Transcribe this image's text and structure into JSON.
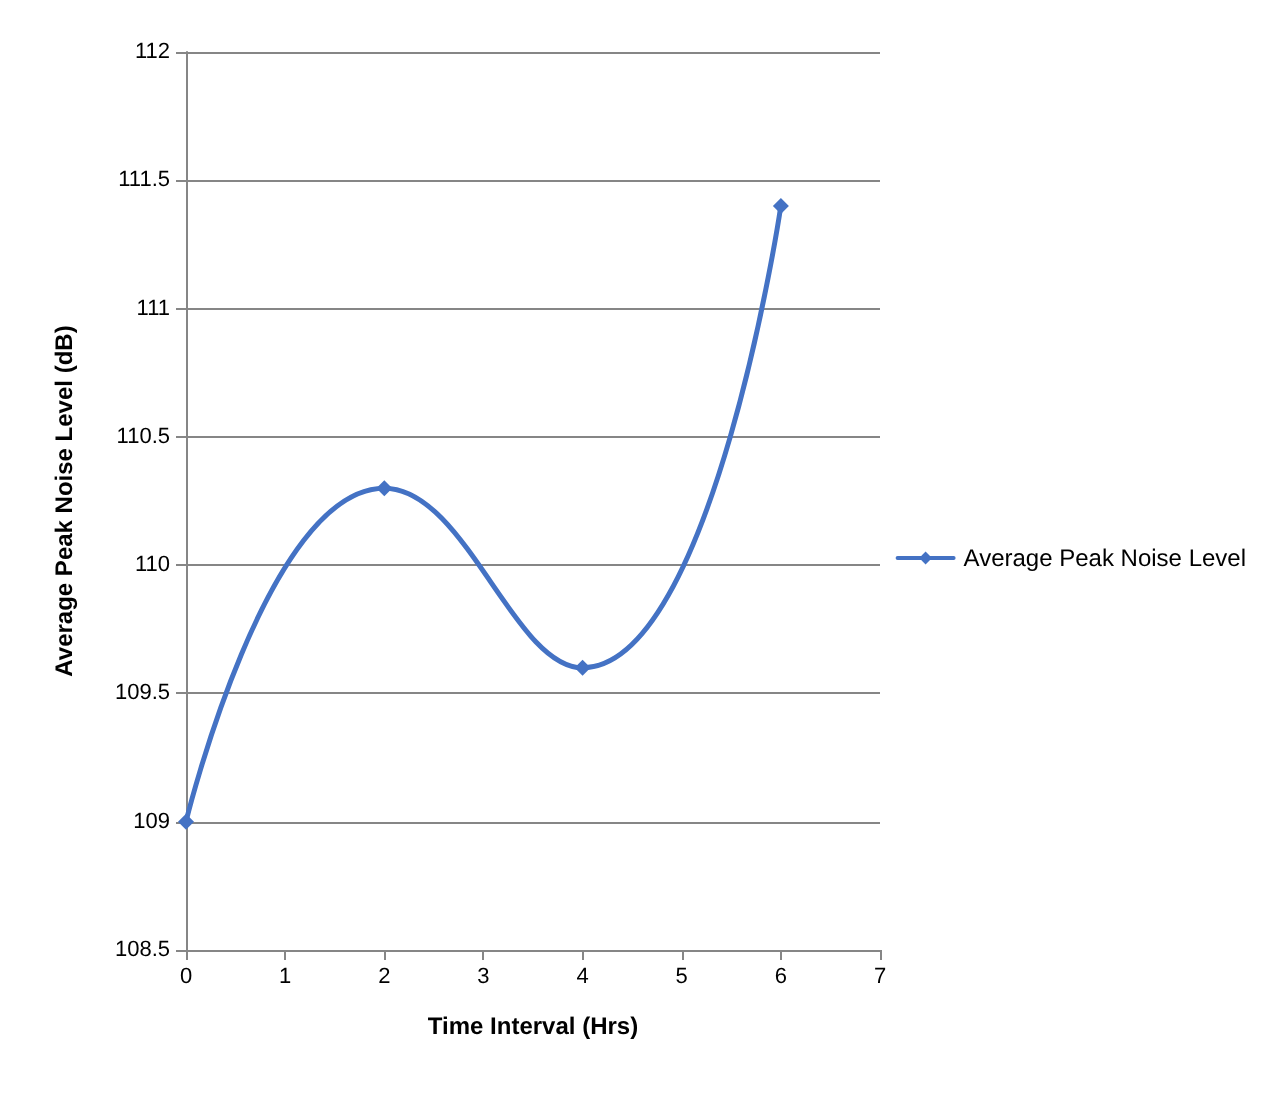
{
  "chart_data": {
    "type": "line",
    "xlabel": "Time Interval (Hrs)",
    "ylabel": "Average Peak Noise Level (dB)",
    "x": [
      0,
      2,
      4,
      6
    ],
    "series": [
      {
        "name": "Average Peak Noise Level",
        "color": "#4472c4",
        "values": [
          109,
          110.3,
          109.6,
          111.4
        ]
      }
    ],
    "xlim": [
      0,
      7
    ],
    "xticks": [
      0,
      1,
      2,
      3,
      4,
      5,
      6,
      7
    ],
    "ylim": [
      108.5,
      112
    ],
    "yticks": [
      108.5,
      109,
      109.5,
      110,
      110.5,
      111,
      111.5,
      112
    ],
    "grid": "y",
    "legend": "right",
    "marker": "diamond",
    "line_style": "solid"
  }
}
